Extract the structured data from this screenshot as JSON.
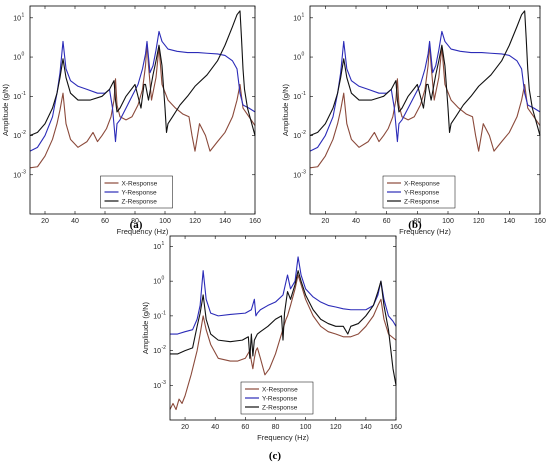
{
  "chart_data": [
    {
      "panel_label": "(a)",
      "type": "line",
      "xlabel": "Frequency (Hz)",
      "ylabel": "Amplitude (g/N)",
      "xlim": [
        10,
        160
      ],
      "ylim": [
        0.0001,
        20
      ],
      "y_scale": "log",
      "x_ticks": [
        20,
        40,
        60,
        80,
        100,
        120,
        140,
        160
      ],
      "y_ticks": [
        {
          "value": 0.001,
          "base": "10",
          "exp": "-3"
        },
        {
          "value": 0.01,
          "base": "10",
          "exp": "-2"
        },
        {
          "value": 0.1,
          "base": "10",
          "exp": "-1"
        },
        {
          "value": 1,
          "base": "10",
          "exp": "0"
        },
        {
          "value": 10,
          "base": "10",
          "exp": "1"
        }
      ],
      "legend_position": "bottom-center",
      "series": [
        {
          "name": "X-Response",
          "color": "#8b4a3b",
          "x": [
            10,
            15,
            20,
            25,
            28,
            30,
            32,
            34,
            37,
            42,
            48,
            52,
            55,
            58,
            61,
            64,
            66,
            67,
            68,
            70,
            74,
            78,
            82,
            85,
            87,
            88,
            89,
            91,
            94,
            96,
            98,
            102,
            107,
            112,
            116,
            118,
            120,
            123,
            127,
            130,
            135,
            140,
            145,
            148,
            150,
            152,
            156,
            160
          ],
          "y": [
            0.0015,
            0.0016,
            0.003,
            0.008,
            0.02,
            0.045,
            0.12,
            0.02,
            0.008,
            0.005,
            0.007,
            0.012,
            0.007,
            0.01,
            0.015,
            0.03,
            0.08,
            0.28,
            0.06,
            0.03,
            0.025,
            0.03,
            0.06,
            0.15,
            0.6,
            2.2,
            0.6,
            0.08,
            0.3,
            1.8,
            0.2,
            0.08,
            0.05,
            0.035,
            0.03,
            0.01,
            0.004,
            0.02,
            0.01,
            0.004,
            0.007,
            0.012,
            0.03,
            0.08,
            0.2,
            0.05,
            0.03,
            0.018
          ]
        },
        {
          "name": "Y-Response",
          "color": "#2b2bb8",
          "x": [
            10,
            15,
            20,
            25,
            28,
            30,
            32,
            34,
            37,
            42,
            48,
            55,
            60,
            63,
            65,
            67,
            68,
            70,
            74,
            78,
            82,
            85,
            87,
            88,
            90,
            92,
            94,
            96,
            98,
            102,
            108,
            115,
            122,
            128,
            135,
            140,
            145,
            148,
            150,
            152,
            156,
            160
          ],
          "y": [
            0.004,
            0.005,
            0.01,
            0.03,
            0.12,
            0.4,
            2.5,
            0.5,
            0.25,
            0.18,
            0.15,
            0.12,
            0.12,
            0.15,
            0.05,
            0.007,
            0.02,
            0.025,
            0.05,
            0.1,
            0.2,
            0.5,
            1.2,
            2.5,
            0.4,
            0.6,
            1.5,
            4.5,
            2.5,
            1.6,
            1.4,
            1.3,
            1.3,
            1.25,
            1.2,
            1.1,
            0.8,
            0.5,
            0.12,
            0.06,
            0.05,
            0.04
          ]
        },
        {
          "name": "Z-Response",
          "color": "#111111",
          "x": [
            10,
            15,
            20,
            25,
            28,
            30,
            32,
            34,
            37,
            42,
            50,
            58,
            63,
            66,
            67,
            68,
            70,
            74,
            80,
            84,
            86,
            87,
            89,
            92,
            94,
            96,
            98,
            100,
            101,
            102,
            105,
            110,
            115,
            120,
            128,
            135,
            140,
            145,
            148,
            150,
            151,
            152,
            153,
            155,
            160
          ],
          "y": [
            0.01,
            0.012,
            0.02,
            0.05,
            0.12,
            0.3,
            0.9,
            0.3,
            0.12,
            0.08,
            0.08,
            0.1,
            0.15,
            0.25,
            0.08,
            0.04,
            0.05,
            0.1,
            0.2,
            0.05,
            0.2,
            0.2,
            0.08,
            0.35,
            0.8,
            2.0,
            0.6,
            0.05,
            0.012,
            0.02,
            0.03,
            0.06,
            0.1,
            0.18,
            0.35,
            0.8,
            2.0,
            6.0,
            12.0,
            15.0,
            3.0,
            0.5,
            0.15,
            0.05,
            0.01
          ]
        }
      ]
    },
    {
      "panel_label": "(b)",
      "type": "line",
      "xlabel": "Frequency (Hz)",
      "ylabel": "Amplitude (g/N)",
      "xlim": [
        10,
        160
      ],
      "ylim": [
        0.0001,
        20
      ],
      "y_scale": "log",
      "x_ticks": [
        20,
        40,
        60,
        80,
        100,
        120,
        140,
        160
      ],
      "y_ticks": [
        {
          "value": 0.001,
          "base": "10",
          "exp": "-3"
        },
        {
          "value": 0.01,
          "base": "10",
          "exp": "-2"
        },
        {
          "value": 0.1,
          "base": "10",
          "exp": "-1"
        },
        {
          "value": 1,
          "base": "10",
          "exp": "0"
        },
        {
          "value": 10,
          "base": "10",
          "exp": "1"
        }
      ],
      "legend_position": "bottom-center",
      "series": [
        {
          "name": "X-Response",
          "color": "#8b4a3b",
          "x": [
            10,
            15,
            20,
            25,
            28,
            30,
            32,
            34,
            37,
            42,
            48,
            52,
            55,
            58,
            61,
            64,
            66,
            67,
            68,
            70,
            74,
            78,
            82,
            85,
            87,
            88,
            89,
            91,
            94,
            96,
            98,
            102,
            107,
            112,
            116,
            118,
            120,
            123,
            127,
            130,
            135,
            140,
            145,
            148,
            150,
            152,
            156,
            160
          ],
          "y": [
            0.0015,
            0.0016,
            0.003,
            0.008,
            0.02,
            0.045,
            0.12,
            0.02,
            0.008,
            0.005,
            0.007,
            0.012,
            0.007,
            0.01,
            0.015,
            0.03,
            0.08,
            0.28,
            0.06,
            0.03,
            0.025,
            0.03,
            0.06,
            0.15,
            0.6,
            2.2,
            0.6,
            0.08,
            0.3,
            1.8,
            0.2,
            0.08,
            0.05,
            0.035,
            0.03,
            0.01,
            0.004,
            0.02,
            0.01,
            0.004,
            0.007,
            0.012,
            0.03,
            0.08,
            0.2,
            0.05,
            0.03,
            0.018
          ]
        },
        {
          "name": "Y-Response",
          "color": "#2b2bb8",
          "x": [
            10,
            15,
            20,
            25,
            28,
            30,
            32,
            34,
            37,
            42,
            48,
            55,
            60,
            63,
            65,
            67,
            68,
            70,
            74,
            78,
            82,
            85,
            87,
            88,
            90,
            92,
            94,
            96,
            98,
            102,
            108,
            115,
            122,
            128,
            135,
            140,
            145,
            148,
            150,
            152,
            156,
            160
          ],
          "y": [
            0.004,
            0.005,
            0.01,
            0.03,
            0.12,
            0.4,
            2.5,
            0.5,
            0.25,
            0.18,
            0.15,
            0.12,
            0.12,
            0.15,
            0.05,
            0.007,
            0.02,
            0.025,
            0.05,
            0.1,
            0.2,
            0.5,
            1.2,
            2.5,
            0.4,
            0.6,
            1.5,
            4.5,
            2.5,
            1.6,
            1.4,
            1.3,
            1.3,
            1.25,
            1.2,
            1.1,
            0.8,
            0.5,
            0.12,
            0.06,
            0.05,
            0.04
          ]
        },
        {
          "name": "Z-Response",
          "color": "#111111",
          "x": [
            10,
            15,
            20,
            25,
            28,
            30,
            32,
            34,
            37,
            42,
            50,
            58,
            63,
            66,
            67,
            68,
            70,
            74,
            80,
            84,
            86,
            87,
            89,
            92,
            94,
            96,
            98,
            100,
            101,
            102,
            105,
            110,
            115,
            120,
            128,
            135,
            140,
            145,
            148,
            150,
            151,
            152,
            153,
            155,
            160
          ],
          "y": [
            0.01,
            0.012,
            0.02,
            0.05,
            0.12,
            0.3,
            0.9,
            0.3,
            0.12,
            0.08,
            0.08,
            0.1,
            0.15,
            0.25,
            0.08,
            0.04,
            0.05,
            0.1,
            0.2,
            0.05,
            0.2,
            0.2,
            0.08,
            0.35,
            0.8,
            2.0,
            0.6,
            0.05,
            0.012,
            0.02,
            0.03,
            0.06,
            0.1,
            0.18,
            0.35,
            0.8,
            2.0,
            6.0,
            12.0,
            15.0,
            3.0,
            0.5,
            0.15,
            0.05,
            0.01
          ]
        }
      ]
    },
    {
      "panel_label": "(c)",
      "type": "line",
      "xlabel": "Frequency (Hz)",
      "ylabel": "Amplitude (g/N)",
      "xlim": [
        10,
        160
      ],
      "ylim": [
        0.0001,
        20
      ],
      "y_scale": "log",
      "x_ticks": [
        20,
        40,
        60,
        80,
        100,
        120,
        140,
        160
      ],
      "y_ticks": [
        {
          "value": 0.001,
          "base": "10",
          "exp": "-3"
        },
        {
          "value": 0.01,
          "base": "10",
          "exp": "-2"
        },
        {
          "value": 0.1,
          "base": "10",
          "exp": "-1"
        },
        {
          "value": 1,
          "base": "10",
          "exp": "0"
        },
        {
          "value": 10,
          "base": "10",
          "exp": "1"
        }
      ],
      "legend_position": "bottom-center",
      "series": [
        {
          "name": "X-Response",
          "color": "#8b4a3b",
          "x": [
            10,
            12,
            14,
            16,
            18,
            20,
            24,
            28,
            30,
            32,
            34,
            37,
            42,
            50,
            55,
            60,
            63,
            64,
            65,
            66,
            67,
            68,
            70,
            73,
            76,
            80,
            84,
            87,
            88,
            90,
            93,
            95,
            97,
            100,
            105,
            110,
            115,
            120,
            125,
            130,
            135,
            140,
            145,
            148,
            150,
            152,
            155,
            160
          ],
          "y": [
            0.0002,
            0.0003,
            0.0002,
            0.0004,
            0.0003,
            0.0005,
            0.002,
            0.01,
            0.03,
            0.1,
            0.04,
            0.015,
            0.006,
            0.005,
            0.005,
            0.006,
            0.01,
            0.005,
            0.003,
            0.006,
            0.01,
            0.012,
            0.006,
            0.002,
            0.003,
            0.008,
            0.03,
            0.08,
            0.1,
            0.2,
            0.6,
            1.5,
            0.8,
            0.3,
            0.1,
            0.05,
            0.035,
            0.03,
            0.025,
            0.025,
            0.03,
            0.05,
            0.1,
            0.2,
            0.3,
            0.08,
            0.03,
            0.02
          ]
        },
        {
          "name": "Y-Response",
          "color": "#2b2bb8",
          "x": [
            10,
            15,
            20,
            25,
            28,
            30,
            32,
            34,
            37,
            42,
            50,
            60,
            64,
            66,
            67,
            68,
            70,
            75,
            80,
            85,
            88,
            90,
            93,
            95,
            97,
            100,
            105,
            110,
            115,
            120,
            125,
            130,
            135,
            140,
            145,
            148,
            150,
            152,
            155,
            158,
            160
          ],
          "y": [
            0.03,
            0.03,
            0.035,
            0.04,
            0.08,
            0.2,
            2.0,
            0.3,
            0.12,
            0.1,
            0.11,
            0.12,
            0.15,
            0.3,
            0.1,
            0.12,
            0.15,
            0.2,
            0.25,
            0.4,
            1.5,
            0.6,
            1.0,
            5.0,
            1.5,
            0.6,
            0.35,
            0.25,
            0.2,
            0.18,
            0.16,
            0.15,
            0.15,
            0.15,
            0.2,
            0.4,
            1.0,
            0.3,
            0.1,
            0.07,
            0.05
          ]
        },
        {
          "name": "Z-Response",
          "color": "#111111",
          "x": [
            10,
            15,
            20,
            25,
            28,
            30,
            32,
            34,
            37,
            42,
            50,
            58,
            62,
            63,
            64,
            65,
            66,
            68,
            70,
            75,
            80,
            84,
            85,
            86,
            88,
            90,
            93,
            95,
            97,
            100,
            105,
            110,
            115,
            120,
            125,
            128,
            130,
            135,
            140,
            145,
            148,
            150,
            152,
            155,
            158,
            160
          ],
          "y": [
            0.008,
            0.008,
            0.01,
            0.012,
            0.05,
            0.12,
            0.4,
            0.08,
            0.03,
            0.02,
            0.018,
            0.02,
            0.025,
            0.006,
            0.03,
            0.007,
            0.02,
            0.03,
            0.035,
            0.05,
            0.08,
            0.1,
            0.02,
            0.12,
            0.5,
            0.3,
            0.8,
            2.0,
            1.0,
            0.4,
            0.15,
            0.08,
            0.06,
            0.05,
            0.05,
            0.03,
            0.05,
            0.06,
            0.1,
            0.2,
            0.5,
            1.0,
            0.2,
            0.04,
            0.003,
            0.001
          ]
        }
      ]
    }
  ]
}
